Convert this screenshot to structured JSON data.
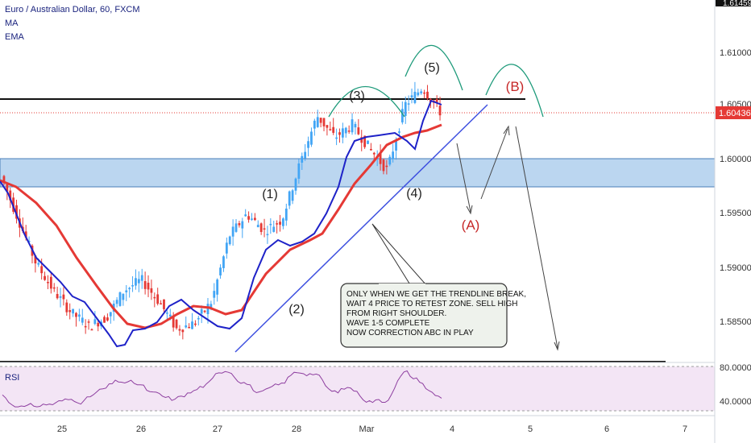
{
  "header": {
    "symbol": "Euro / Australian Dollar, 60, FXCM",
    "indicators": [
      "MA",
      "EMA"
    ]
  },
  "price_axis": {
    "ticks": [
      "1.61000",
      "1.60500",
      "1.60000",
      "1.59500",
      "1.59000",
      "1.58500"
    ],
    "top_label": "1.61459",
    "current_price": "1.60436",
    "current_color": "#e53935"
  },
  "rsi": {
    "label": "RSI",
    "ticks": [
      "80.0000",
      "40.0000"
    ]
  },
  "time_axis": {
    "labels": [
      "25",
      "26",
      "27",
      "28",
      "Mar",
      "4",
      "5",
      "6",
      "7"
    ]
  },
  "wave_labels": {
    "w1": "(1)",
    "w2": "(2)",
    "w3": "(3)",
    "w4": "(4)",
    "w5": "(5)",
    "a": "(A)",
    "b": "(B)"
  },
  "annotation": {
    "lines": [
      "ONLY WHEN WE GET THE TRENDLINE BREAK,",
      "WAIT 4 PRICE TO RETEST ZONE. SELL HIGH",
      "FROM RIGHT SHOULDER.",
      "WAVE 1-5 COMPLETE",
      "NOW CORRECTION ABC IN PLAY"
    ]
  },
  "colors": {
    "bull": "#42a5f5",
    "bear": "#e53935",
    "ma": "#1e22c8",
    "ema": "#e53935",
    "zone": "#bbd6f0",
    "zone_border": "#4a7db8",
    "trendline": "#3f51e0",
    "resistance": "#111111",
    "shoulder": "#1d9a7a",
    "rsi_line": "#8e3fa0",
    "rsi_bg": "#f3e5f5"
  },
  "chart_data": {
    "type": "candlestick",
    "symbol": "EURAUD",
    "timeframe": "60",
    "ylim": [
      1.5815,
      1.6146
    ],
    "support_zone": [
      1.5975,
      1.6
    ],
    "resistance_level": 1.6055,
    "trendline": [
      [
        "Feb 27",
        1.582
      ],
      [
        "Mar 4",
        1.6043
      ]
    ],
    "waves": [
      {
        "label": "(1)",
        "x": "Feb 27",
        "y": 1.596
      },
      {
        "label": "(2)",
        "x": "Feb 27",
        "y": 1.584
      },
      {
        "label": "(3)",
        "x": "Feb 28",
        "y": 1.606
      },
      {
        "label": "(4)",
        "x": "Mar 1",
        "y": 1.598
      },
      {
        "label": "(5)",
        "x": "Mar 1",
        "y": 1.6075
      },
      {
        "label": "(A)",
        "x": "Mar 4",
        "y": 1.5945
      },
      {
        "label": "(B)",
        "x": "Mar 4",
        "y": 1.606
      }
    ],
    "price_path": [
      [
        "Feb 24",
        1.5985
      ],
      [
        "Feb 24",
        1.5945
      ],
      [
        "Feb 25",
        1.5905
      ],
      [
        "Feb 25",
        1.588
      ],
      [
        "Feb 25",
        1.586
      ],
      [
        "Feb 25",
        1.5848
      ],
      [
        "Feb 26",
        1.5855
      ],
      [
        "Feb 26",
        1.588
      ],
      [
        "Feb 26",
        1.589
      ],
      [
        "Feb 26",
        1.587
      ],
      [
        "Feb 27",
        1.5845
      ],
      [
        "Feb 27",
        1.585
      ],
      [
        "Feb 27",
        1.587
      ],
      [
        "Feb 27",
        1.593
      ],
      [
        "Feb 28",
        1.595
      ],
      [
        "Feb 28",
        1.5935
      ],
      [
        "Feb 28",
        1.5945
      ],
      [
        "Feb 28",
        1.5995
      ],
      [
        "Mar 1",
        1.604
      ],
      [
        "Mar 1",
        1.602
      ],
      [
        "Mar 1",
        1.6032
      ],
      [
        "Mar 1",
        1.601
      ],
      [
        "Mar 1",
        1.599
      ],
      [
        "Mar 1",
        1.605
      ],
      [
        "Mar 1",
        1.6066
      ],
      [
        "Mar 1",
        1.6044
      ]
    ],
    "projection": [
      [
        "Mar 4",
        1.6
      ],
      [
        "Mar 4",
        1.595
      ],
      [
        "Mar 4",
        1.6045
      ],
      [
        "Mar 5",
        1.582
      ]
    ],
    "rsi_ylim": [
      20,
      90
    ],
    "rsi_levels": [
      80,
      40
    ]
  }
}
